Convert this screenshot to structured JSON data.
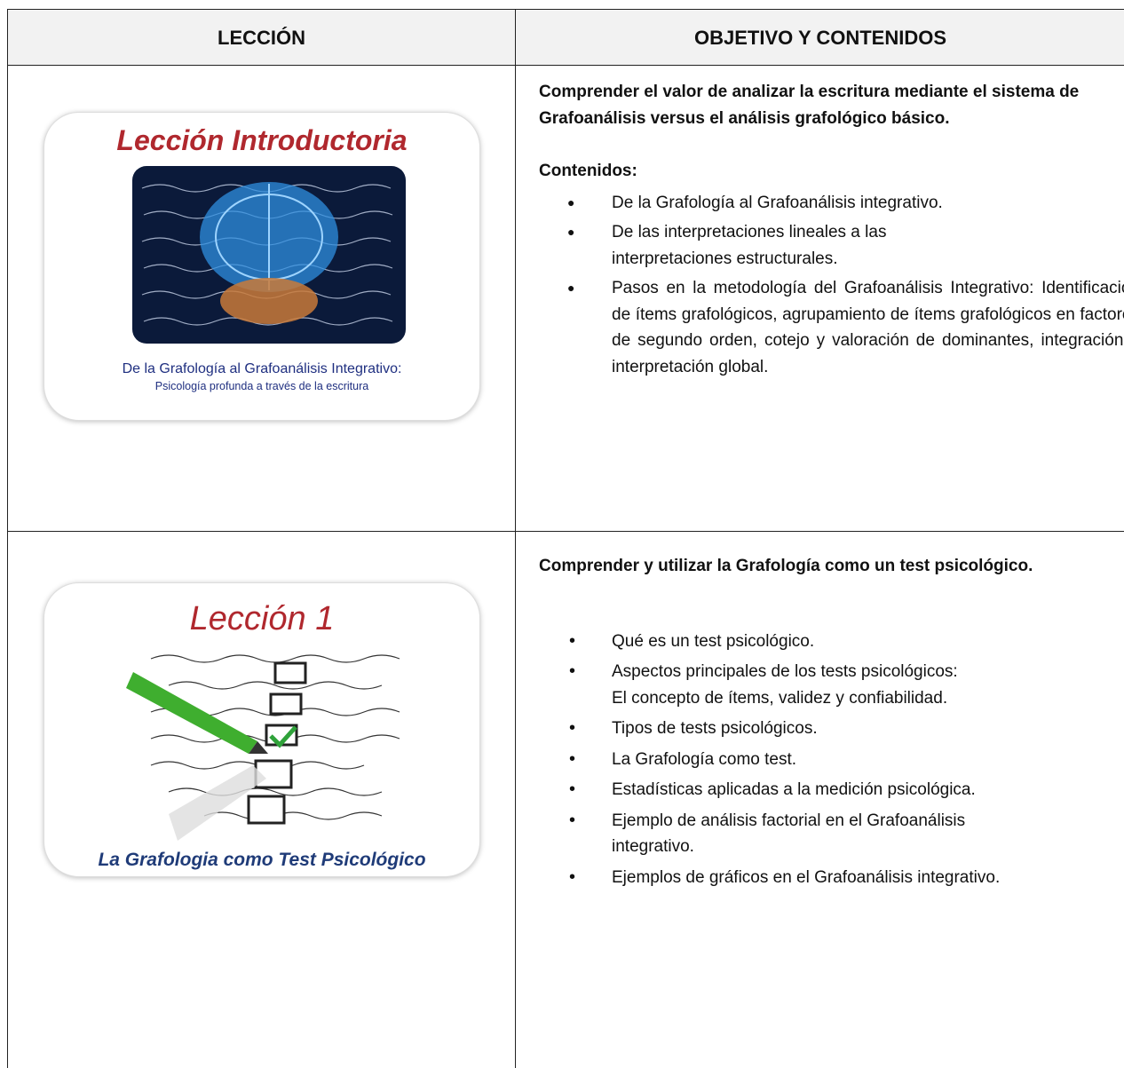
{
  "table": {
    "headers": [
      "LECCIÓN",
      "OBJETIVO Y CONTENIDOS"
    ],
    "rows": [
      {
        "card": {
          "title": "Lección Introductoria",
          "caption": "De la Grafología al Grafoanálisis Integrativo:",
          "subcaption": "Psicología profunda a través de la escritura"
        },
        "objective": "Comprender el valor de analizar la escritura mediante el sistema de Grafoanálisis versus el análisis grafológico básico.",
        "contents_label": "Contenidos:",
        "bullets": [
          "De la Grafología al Grafoanálisis integrativo.",
          "De las interpretaciones lineales a las interpretaciones estructurales.",
          "Pasos en la metodología del Grafoanálisis Integrativo: Identificación de ítems grafológicos, agrupamiento de ítems grafológicos en factores de segundo orden, cotejo y valoración de dominantes, integración e interpretación global."
        ]
      },
      {
        "card": {
          "title": "Lección 1",
          "caption": "La Grafologia como Test Psicológico"
        },
        "objective": "Comprender y utilizar la Grafología como un test psicológico.",
        "bullets": [
          "Qué es un test psicológico.",
          "Aspectos principales de los tests psicológicos:\nEl concepto de ítems, validez y confiabilidad.",
          "Tipos de tests psicológicos.",
          "La Grafología como test.",
          "Estadísticas aplicadas a la medición psicológica.",
          "Ejemplo de análisis factorial en el Grafoanálisis integrativo.",
          "Ejemplos de gráficos en el Grafoanálisis integrativo."
        ]
      }
    ]
  }
}
